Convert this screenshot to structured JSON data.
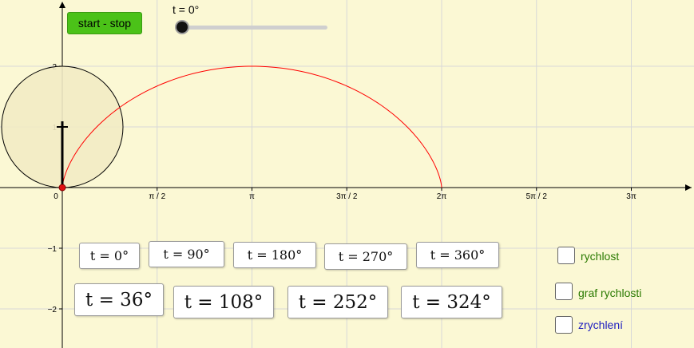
{
  "controls": {
    "start_stop_label": "start - stop",
    "slider_label": "t = 0°",
    "slider_value_deg": 0
  },
  "axes": {
    "x_ticks": [
      "0",
      "π / 2",
      "π",
      "3π / 2",
      "2π",
      "5π / 2",
      "3π"
    ],
    "y_ticks": [
      "2",
      "1",
      "−1",
      "−2"
    ]
  },
  "buttons_row1": [
    "t = 0°",
    "t = 90°",
    "t = 180°",
    "t = 270°",
    "t = 360°"
  ],
  "buttons_row2": [
    "t = 36°",
    "t = 108°",
    "t = 252°",
    "t = 324°"
  ],
  "checkboxes": [
    {
      "label": "rychlost",
      "checked": false,
      "color": "#2a7a00"
    },
    {
      "label": "graf rychlosti",
      "checked": false,
      "color": "#2a7a00"
    },
    {
      "label": "zrychlení",
      "checked": false,
      "color": "#2020c0"
    }
  ],
  "colors": {
    "background": "#fbf8d4",
    "grid": "#cfcfcf",
    "cycloid": "#ff0000",
    "wheel_fill": "#f2ebc4",
    "button_green": "#4bc218"
  }
}
